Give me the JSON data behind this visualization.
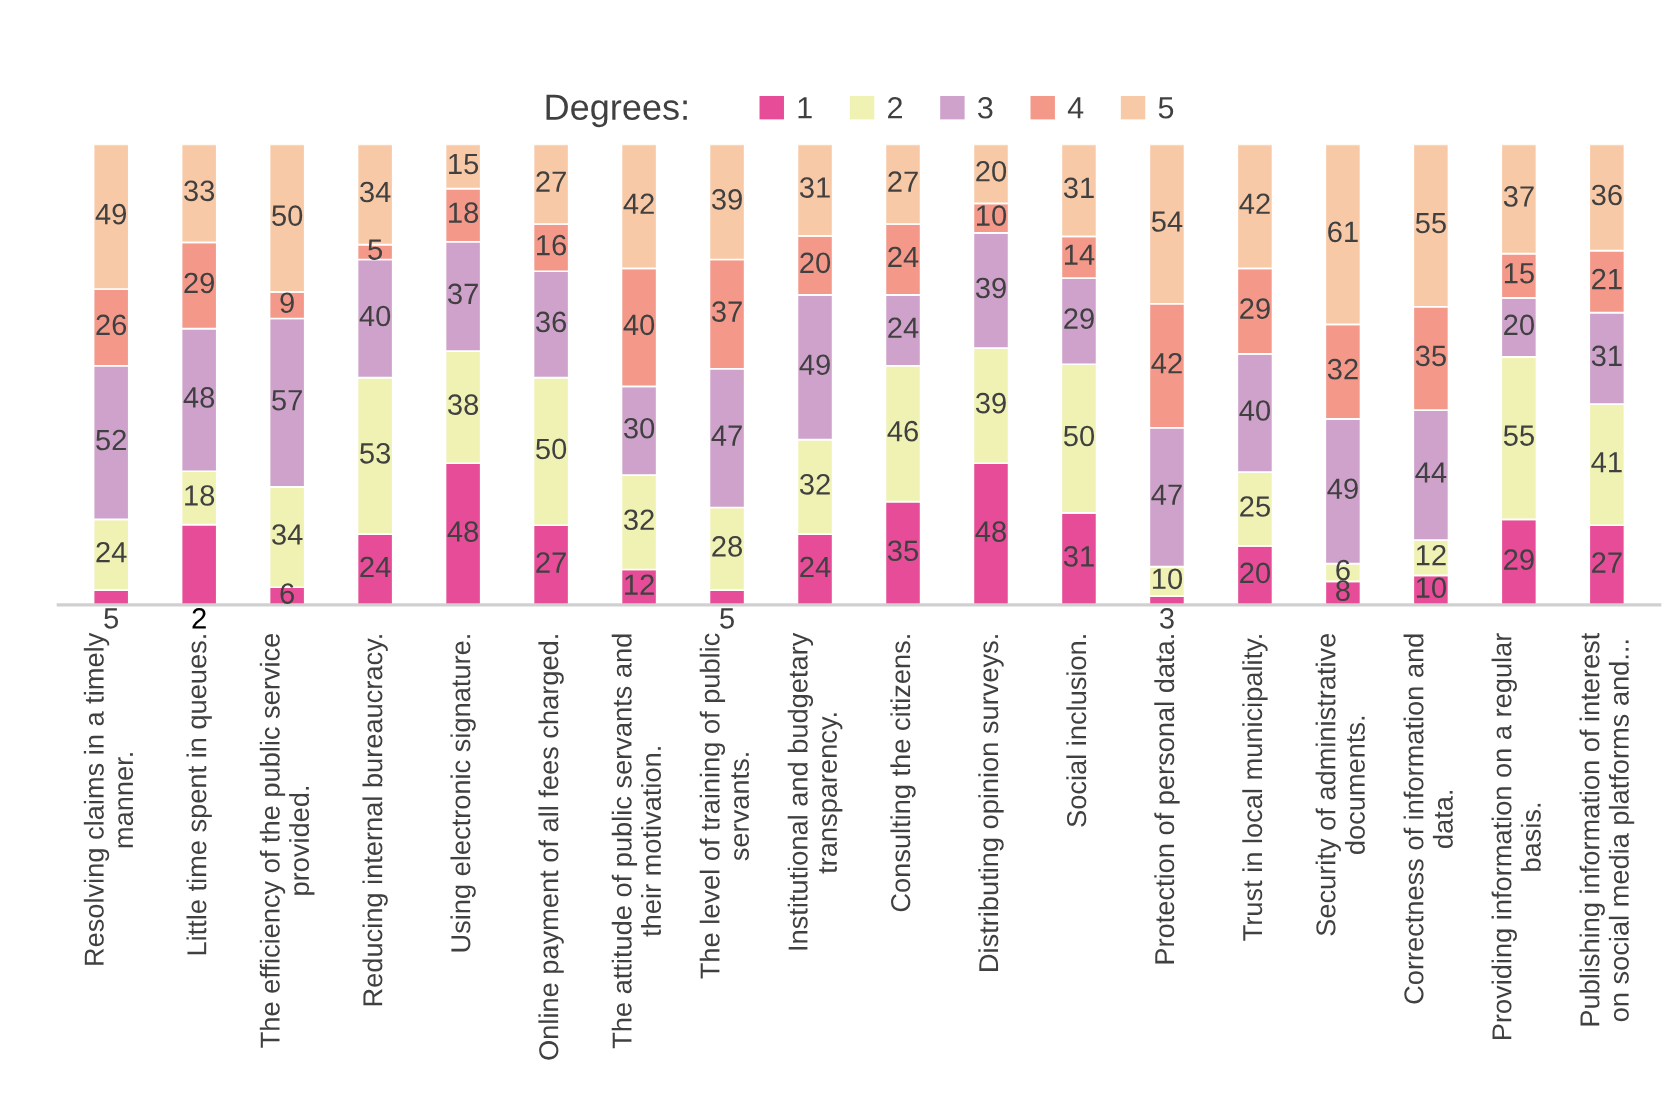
{
  "chart_data": {
    "type": "bar",
    "stacked": "percent",
    "legend": "top",
    "legend_title": "Degrees:",
    "grid": false,
    "categories": [
      "Resolving claims in a timely\nmanner.",
      "Little time spent in queues.",
      "The efficiency of the public service\nprovided.",
      "Reducing internal bureaucracy.",
      "Using electronic signature.",
      "Online payment of all fees charged.",
      "The attitude of public servants and\ntheir motivation.",
      "The level of training of public\nservants.",
      "Institutional and budgetary\ntransparency.",
      "Consulting the citizens.",
      "Distributing opinion surveys.",
      "Social inclusion.",
      "Protection of personal data.",
      "Trust in local municipality.",
      "Security of administrative\ndocuments.",
      "Correctness of information and\ndata.",
      "Providing information on a regular\nbasis.",
      "Publishing information of interest\non social media platforms and..."
    ],
    "series": [
      {
        "name": "1",
        "color": "#e64c97",
        "values": [
          5,
          27,
          6,
          24,
          48,
          27,
          12,
          5,
          24,
          35,
          48,
          31,
          3,
          20,
          8,
          10,
          29,
          27
        ],
        "value_labels": [
          "5",
          null,
          "6",
          "24",
          "48",
          "27",
          "12",
          "5",
          "24",
          "35",
          "48",
          "31",
          "3",
          "20",
          "8",
          "10",
          "29",
          "27"
        ]
      },
      {
        "name": "2",
        "color": "#f0f2b4",
        "values": [
          24,
          18,
          34,
          53,
          38,
          50,
          32,
          28,
          32,
          46,
          39,
          50,
          10,
          25,
          6,
          12,
          55,
          41
        ],
        "value_labels": [
          "24",
          "18",
          "34",
          "53",
          "38",
          "50",
          "32",
          "28",
          "32",
          "46",
          "39",
          "50",
          "10",
          "25",
          "6",
          "12",
          "55",
          "41"
        ]
      },
      {
        "name": "3",
        "color": "#cfa2cc",
        "values": [
          52,
          48,
          57,
          40,
          37,
          36,
          30,
          47,
          49,
          24,
          39,
          29,
          47,
          40,
          49,
          44,
          20,
          31
        ],
        "value_labels": [
          "52",
          "48",
          "57",
          "40",
          "37",
          "36",
          "30",
          "47",
          "49",
          "24",
          "39",
          "29",
          "47",
          "40",
          "49",
          "44",
          "20",
          "31"
        ]
      },
      {
        "name": "4",
        "color": "#f4998a",
        "values": [
          26,
          29,
          9,
          5,
          18,
          16,
          40,
          37,
          20,
          24,
          10,
          14,
          42,
          29,
          32,
          35,
          15,
          21
        ],
        "value_labels": [
          "26",
          "29",
          "9",
          "5",
          "18",
          "16",
          "40",
          "37",
          "20",
          "24",
          "10",
          "14",
          "42",
          "29",
          "32",
          "35",
          "15",
          "21"
        ]
      },
      {
        "name": "5",
        "color": "#f8c9a6",
        "values": [
          49,
          33,
          50,
          34,
          15,
          27,
          42,
          39,
          31,
          27,
          20,
          31,
          54,
          42,
          61,
          55,
          37,
          36
        ],
        "value_labels": [
          "49",
          "33",
          "50",
          "34",
          "15",
          "27",
          "42",
          "39",
          "31",
          "27",
          "20",
          "31",
          "54",
          "42",
          "61",
          "55",
          "37",
          "36"
        ]
      }
    ],
    "annotations": [
      "2"
    ]
  }
}
